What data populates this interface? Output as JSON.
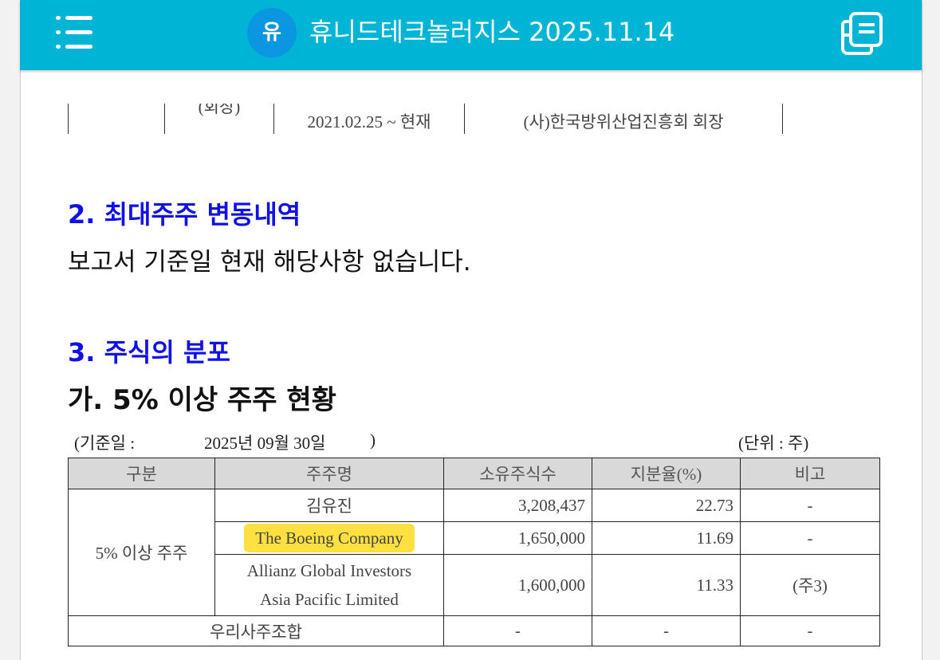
{
  "header": {
    "avatar": "유",
    "title": "휴니드테크놀러지스 2025.11.14",
    "menu_icon": "menu-icon",
    "copy_icon": "copy-icon",
    "color": "#00b4d6"
  },
  "prev_table": {
    "partial_label": "(회장)",
    "period": "2021.02.25 ~ 현재",
    "role": "(사)한국방위산업진흥회 회장"
  },
  "section2": {
    "heading": "2. 최대주주 변동내역",
    "text": "보고서 기준일 현재 해당사항 없습니다."
  },
  "section3": {
    "heading": "3. 주식의 분포",
    "subheading": "가. 5% 이상 주주 현황",
    "date_label": "(기준일 :",
    "date": "2025년 09월 30일",
    "date_close": ")",
    "unit": "(단위 : 주)"
  },
  "table": {
    "headers": [
      "구분",
      "주주명",
      "소유주식수",
      "지분율(%)",
      "비고"
    ],
    "group": "5% 이상 주주",
    "rows": [
      {
        "name": "김유진",
        "shares": "3,208,437",
        "ratio": "22.73",
        "note": "-"
      },
      {
        "name": "The Boeing Company",
        "shares": "1,650,000",
        "ratio": "11.69",
        "note": "-",
        "highlighted": true
      },
      {
        "name": "Allianz Global Investors",
        "name2": "Asia Pacific Limited",
        "shares": "1,600,000",
        "ratio": "11.33",
        "note": "(주3)"
      }
    ],
    "esop": {
      "label": "우리사주조합",
      "shares": "-",
      "ratio": "-",
      "note": "-"
    }
  },
  "highlight_color": "#ffd600"
}
